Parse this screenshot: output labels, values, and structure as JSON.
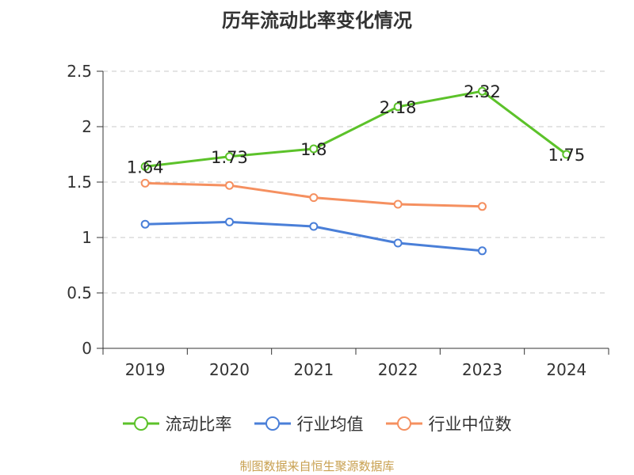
{
  "chart_data": {
    "type": "line",
    "title": "历年流动比率变化情况",
    "categories": [
      "2019",
      "2020",
      "2021",
      "2022",
      "2023",
      "2024"
    ],
    "y_ticks": [
      "0",
      "0.5",
      "1",
      "1.5",
      "2",
      "2.5"
    ],
    "ylim": [
      0,
      2.5
    ],
    "grid": "horizontal dashed",
    "legend_position": "bottom",
    "series": [
      {
        "name": "流动比率",
        "color": "#5cc22a",
        "values": [
          1.64,
          1.73,
          1.8,
          2.18,
          2.32,
          1.75
        ],
        "labels": [
          "1.64",
          "1.73",
          "1.8",
          "2.18",
          "2.32",
          "1.75"
        ]
      },
      {
        "name": "行业均值",
        "color": "#4a7fd8",
        "values": [
          1.12,
          1.14,
          1.1,
          0.95,
          0.88,
          null
        ]
      },
      {
        "name": "行业中位数",
        "color": "#f59060",
        "values": [
          1.49,
          1.47,
          1.36,
          1.3,
          1.28,
          null
        ]
      }
    ]
  },
  "footer": {
    "source": "制图数据来自恒生聚源数据库"
  }
}
